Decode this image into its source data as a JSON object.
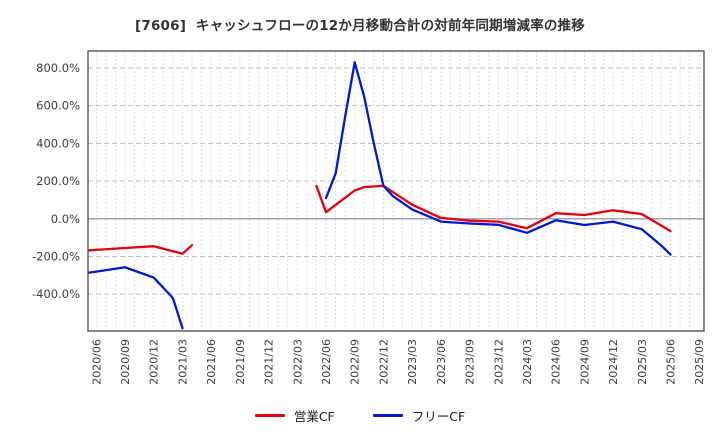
{
  "title": "[7606]  キャッシュフローの12か月移動合計の対前年同期増減率の推移",
  "chart_data": {
    "type": "line",
    "title": "[7606]  キャッシュフローの12か月移動合計の対前年同期増減率の推移",
    "xlabel": "",
    "ylabel": "",
    "x_tick_labels": [
      "2020/06",
      "2020/09",
      "2020/12",
      "2021/03",
      "2021/06",
      "2021/09",
      "2021/12",
      "2022/03",
      "2022/06",
      "2022/09",
      "2022/12",
      "2023/03",
      "2023/06",
      "2023/09",
      "2023/12",
      "2024/03",
      "2024/06",
      "2024/09",
      "2024/12",
      "2025/03",
      "2025/06",
      "2025/09"
    ],
    "y_ticks": [
      800,
      600,
      400,
      200,
      0,
      -200,
      -400
    ],
    "y_tick_labels": [
      "800.0%",
      "600.0%",
      "400.0%",
      "200.0%",
      "0.0%",
      "-200.0%",
      "-400.0%"
    ],
    "ylim": [
      -595,
      890
    ],
    "grid": "horizontal dashed at 200% steps, vertical dotted monthly",
    "legend_position": "bottom-center",
    "axis_color": "#4a4a4a",
    "tick_label_color": "#3d3d3d",
    "series": [
      {
        "name": "営業CF",
        "color": "#e8000d",
        "unit": "%",
        "points": [
          [
            "2020/05",
            -168
          ],
          [
            "2020/06",
            -165
          ],
          [
            "2020/09",
            -155
          ],
          [
            "2020/12",
            -145
          ],
          [
            "2021/03",
            -185
          ],
          [
            "2021/04",
            -140
          ],
          null,
          [
            "2022/05",
            175
          ],
          [
            "2022/06",
            35
          ],
          [
            "2022/09",
            150
          ],
          [
            "2022/10",
            168
          ],
          [
            "2022/12",
            175
          ],
          [
            "2023/03",
            75
          ],
          [
            "2023/06",
            5
          ],
          [
            "2023/09",
            -10
          ],
          [
            "2023/12",
            -15
          ],
          [
            "2024/03",
            -50
          ],
          [
            "2024/06",
            30
          ],
          [
            "2024/09",
            20
          ],
          [
            "2024/12",
            45
          ],
          [
            "2025/03",
            25
          ],
          [
            "2025/05",
            -35
          ],
          [
            "2025/06",
            -65
          ]
        ]
      },
      {
        "name": "フリーCF",
        "color": "#0018dc",
        "unit": "%",
        "points": [
          [
            "2020/05",
            -287
          ],
          [
            "2020/06",
            -280
          ],
          [
            "2020/09",
            -257
          ],
          [
            "2020/12",
            -312
          ],
          [
            "2021/02",
            -420
          ],
          [
            "2021/03",
            -580
          ],
          null,
          [
            "2022/06",
            110
          ],
          [
            "2022/07",
            240
          ],
          [
            "2022/08",
            540
          ],
          [
            "2022/09",
            830
          ],
          [
            "2022/10",
            645
          ],
          [
            "2022/11",
            400
          ],
          [
            "2022/12",
            175
          ],
          [
            "2023/01",
            120
          ],
          [
            "2023/03",
            50
          ],
          [
            "2023/06",
            -15
          ],
          [
            "2023/09",
            -25
          ],
          [
            "2023/12",
            -32
          ],
          [
            "2024/03",
            -74
          ],
          [
            "2024/06",
            -8
          ],
          [
            "2024/09",
            -33
          ],
          [
            "2024/12",
            -15
          ],
          [
            "2025/03",
            -55
          ],
          [
            "2025/05",
            -140
          ],
          [
            "2025/06",
            -190
          ]
        ]
      }
    ]
  }
}
